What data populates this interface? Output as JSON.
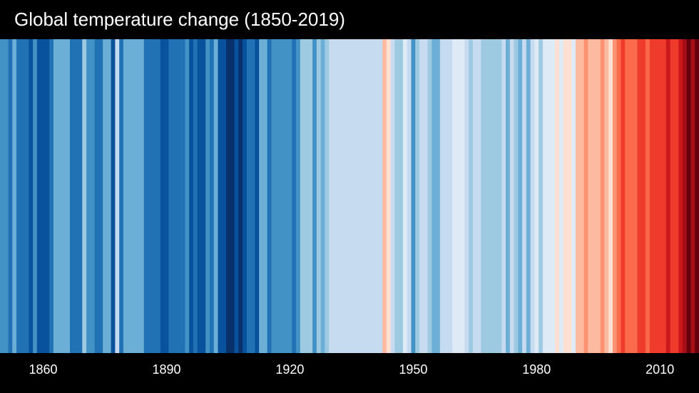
{
  "chart_data": {
    "type": "heatmap",
    "title": "Global temperature change (1850-2019)",
    "x_start": 1850,
    "x_end": 2019,
    "x_ticks": [
      "1860",
      "1890",
      "1920",
      "1950",
      "1980",
      "2010"
    ],
    "colors": [
      "#4292c6",
      "#4292c6",
      "#2171b5",
      "#6baed6",
      "#2171b5",
      "#2171b5",
      "#2171b5",
      "#08519c",
      "#4292c6",
      "#08519c",
      "#08519c",
      "#08519c",
      "#2171b5",
      "#6baed6",
      "#6baed6",
      "#6baed6",
      "#6baed6",
      "#2171b5",
      "#2171b5",
      "#2171b5",
      "#9ecae1",
      "#4292c6",
      "#4292c6",
      "#2171b5",
      "#2171b5",
      "#6baed6",
      "#6baed6",
      "#08519c",
      "#c6dbef",
      "#2171b5",
      "#6baed6",
      "#6baed6",
      "#6baed6",
      "#6baed6",
      "#6baed6",
      "#2171b5",
      "#2171b5",
      "#2171b5",
      "#2171b5",
      "#08519c",
      "#08519c",
      "#2171b5",
      "#2171b5",
      "#2171b5",
      "#2171b5",
      "#4292c6",
      "#08519c",
      "#2171b5",
      "#08519c",
      "#08519c",
      "#4292c6",
      "#2171b5",
      "#6baed6",
      "#08519c",
      "#08519c",
      "#08306b",
      "#08306b",
      "#08519c",
      "#08306b",
      "#08519c",
      "#2171b5",
      "#2171b5",
      "#08519c",
      "#6baed6",
      "#6baed6",
      "#2171b5",
      "#4292c6",
      "#4292c6",
      "#4292c6",
      "#4292c6",
      "#4292c6",
      "#2171b5",
      "#4292c6",
      "#9ecae1",
      "#9ecae1",
      "#9ecae1",
      "#4292c6",
      "#9ecae1",
      "#6baed6",
      "#9ecae1",
      "#c6dbef",
      "#c6dbef",
      "#c6dbef",
      "#c6dbef",
      "#c6dbef",
      "#c6dbef",
      "#c6dbef",
      "#c6dbef",
      "#c6dbef",
      "#c6dbef",
      "#c6dbef",
      "#c6dbef",
      "#c6dbef",
      "#fcbba1",
      "#fee0d2",
      "#c6dbef",
      "#9ecae1",
      "#9ecae1",
      "#deebf7",
      "#c6dbef",
      "#4292c6",
      "#9ecae1",
      "#c6dbef",
      "#c6dbef",
      "#9ecae1",
      "#6baed6",
      "#6baed6",
      "#c6dbef",
      "#c6dbef",
      "#c6dbef",
      "#deebf7",
      "#deebf7",
      "#deebf7",
      "#c6dbef",
      "#9ecae1",
      "#c6dbef",
      "#c6dbef",
      "#9ecae1",
      "#9ecae1",
      "#9ecae1",
      "#9ecae1",
      "#9ecae1",
      "#c6dbef",
      "#6baed6",
      "#c6dbef",
      "#9ecae1",
      "#6baed6",
      "#c6dbef",
      "#6baed6",
      "#c6dbef",
      "#deebf7",
      "#9ecae1",
      "#deebf7",
      "#deebf7",
      "#deebf7",
      "#fee0d2",
      "#deebf7",
      "#fee0d2",
      "#fee0d2",
      "#deebf7",
      "#fcbba1",
      "#fcbba1",
      "#fc9272",
      "#fcbba1",
      "#fcbba1",
      "#fcbba1",
      "#fc9272",
      "#fcbba1",
      "#fee0d2",
      "#fc9272",
      "#fb6a4a",
      "#ef3b2c",
      "#fb6a4a",
      "#fb6a4a",
      "#fb6a4a",
      "#ef3b2c",
      "#ef3b2c",
      "#fb6a4a",
      "#ef3b2c",
      "#ef3b2c",
      "#ef3b2c",
      "#ef3b2c",
      "#cb181d",
      "#ef3b2c",
      "#ef3b2c",
      "#cb181d",
      "#a50f15",
      "#67000d",
      "#a50f15",
      "#67000d"
    ]
  }
}
